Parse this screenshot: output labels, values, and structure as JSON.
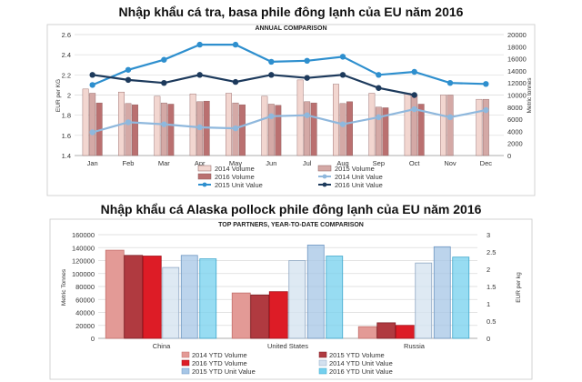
{
  "chart_data": [
    {
      "type": "bar",
      "title": "Nhập khẩu cá tra, basa phile đông lạnh của EU năm 2016",
      "subtitle": "ANNUAL COMPARISON",
      "ylabel": "EUR per KG",
      "y2label": "Metric tonnes",
      "ylim": [
        1.4,
        2.6
      ],
      "yticks": [
        "1.4",
        "1.6",
        "1.8",
        "2",
        "2.2",
        "2.4",
        "2.6"
      ],
      "y2lim": [
        0,
        20000
      ],
      "y2ticks": [
        "0",
        "2000",
        "4000",
        "6000",
        "8000",
        "10000",
        "12000",
        "14000",
        "16000",
        "18000",
        "20000"
      ],
      "categories": [
        "Jan",
        "Feb",
        "Mar",
        "Apr",
        "May",
        "Jun",
        "Jul",
        "Aug",
        "Sep",
        "Oct",
        "Nov",
        "Dec"
      ],
      "grid": true,
      "legend": "bottom",
      "series": [
        {
          "name": "2014 Volume",
          "kind": "bar",
          "axis": "right",
          "color": "#f2d6d0",
          "values": [
            11000,
            10500,
            9800,
            10200,
            10300,
            9800,
            12500,
            11800,
            10300,
            10300,
            10000,
            9300
          ]
        },
        {
          "name": "2015 Volume",
          "kind": "bar",
          "axis": "right",
          "color": "#d4a9a6",
          "values": [
            10300,
            8600,
            8700,
            8900,
            8700,
            8500,
            8900,
            8600,
            8000,
            10000,
            10000,
            9300
          ]
        },
        {
          "name": "2016 Volume",
          "kind": "bar",
          "axis": "right",
          "color": "#ba7070",
          "values": [
            8700,
            8400,
            8500,
            9000,
            8400,
            8300,
            8700,
            8900,
            7900,
            8500,
            null,
            null
          ]
        },
        {
          "name": "2014 Unit Value",
          "kind": "line",
          "axis": "left",
          "color": "#8fb8dd",
          "values": [
            1.63,
            1.73,
            1.71,
            1.68,
            1.67,
            1.79,
            1.8,
            1.71,
            1.78,
            1.86,
            1.78,
            1.85
          ]
        },
        {
          "name": "2015 Unit Value",
          "kind": "line",
          "axis": "left",
          "color": "#2e8fce",
          "values": [
            2.1,
            2.25,
            2.35,
            2.5,
            2.5,
            2.33,
            2.34,
            2.38,
            2.2,
            2.23,
            2.12,
            2.11
          ]
        },
        {
          "name": "2016 Unit Value",
          "kind": "line",
          "axis": "left",
          "color": "#1d3a5c",
          "values": [
            2.2,
            2.15,
            2.12,
            2.2,
            2.13,
            2.2,
            2.17,
            2.2,
            2.07,
            2.0,
            null,
            null
          ]
        }
      ]
    },
    {
      "type": "bar",
      "title": "Nhập khẩu cá Alaska pollock phile đông lạnh của EU năm 2016",
      "subtitle": "TOP PARTNERS, YEAR-TO-DATE COMPARISON",
      "ylabel": "Metric Tonnes",
      "y2label": "EUR per kg",
      "ylim": [
        0,
        160000
      ],
      "yticks": [
        "0",
        "20000",
        "40000",
        "60000",
        "80000",
        "100000",
        "120000",
        "140000",
        "160000"
      ],
      "y2lim": [
        0,
        3
      ],
      "y2ticks": [
        "0",
        "0.5",
        "1",
        "1.5",
        "2",
        "2.5",
        "3"
      ],
      "categories": [
        "China",
        "United States",
        "Russia"
      ],
      "grid": true,
      "legend": "bottom",
      "series": [
        {
          "name": "2014 YTD Volume",
          "kind": "bar",
          "color": "#e39a96",
          "values": [
            136000,
            70000,
            18000
          ]
        },
        {
          "name": "2015 YTD Volume",
          "kind": "bar",
          "color": "#b03a40",
          "values": [
            128000,
            67000,
            24000
          ]
        },
        {
          "name": "2016 YTD Volume",
          "kind": "bar",
          "color": "#dd1c26",
          "values": [
            127000,
            72000,
            20000
          ]
        },
        {
          "name": "2014 YTD Unit Value",
          "kind": "bar",
          "color": "#d3e1ef",
          "values": [
            2.05,
            2.25,
            2.18
          ]
        },
        {
          "name": "2015 YTD Unit Value",
          "kind": "bar",
          "color": "#a6c6e6",
          "values": [
            2.4,
            2.7,
            2.65
          ]
        },
        {
          "name": "2016 YTD Unit Value",
          "kind": "bar",
          "color": "#74d0ee",
          "values": [
            2.3,
            2.38,
            2.35
          ]
        }
      ]
    }
  ]
}
